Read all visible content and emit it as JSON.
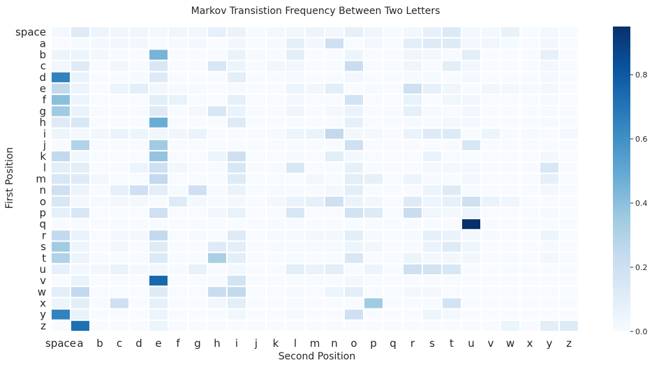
{
  "chart_data": {
    "type": "heatmap",
    "title": "Markov Transistion Frequency Between Two Letters",
    "xlabel": "Second Position",
    "ylabel": "First Position",
    "rows": [
      "space",
      "a",
      "b",
      "c",
      "d",
      "e",
      "f",
      "g",
      "h",
      "i",
      "j",
      "k",
      "l",
      "m",
      "n",
      "o",
      "p",
      "q",
      "r",
      "s",
      "t",
      "u",
      "v",
      "w",
      "x",
      "y",
      "z"
    ],
    "cols": [
      "space",
      "a",
      "b",
      "c",
      "d",
      "e",
      "f",
      "g",
      "h",
      "i",
      "j",
      "k",
      "l",
      "m",
      "n",
      "o",
      "p",
      "q",
      "r",
      "s",
      "t",
      "u",
      "v",
      "w",
      "x",
      "y",
      "z"
    ],
    "colorbar": {
      "min": 0,
      "max": 0.95,
      "ticks": [
        0.0,
        0.2,
        0.4,
        0.6,
        0.8
      ],
      "tick_labels": [
        "0.0",
        "0.2",
        "0.4",
        "0.6",
        "0.8"
      ],
      "colormap": "Blues"
    },
    "values": [
      [
        0.02,
        0.12,
        0.05,
        0.04,
        0.04,
        0.02,
        0.04,
        0.03,
        0.08,
        0.06,
        0.01,
        0.02,
        0.03,
        0.05,
        0.03,
        0.08,
        0.04,
        0.01,
        0.03,
        0.08,
        0.13,
        0.02,
        0.02,
        0.07,
        0.0,
        0.02,
        0.0
      ],
      [
        0.0,
        0.01,
        0.02,
        0.03,
        0.03,
        0.0,
        0.01,
        0.02,
        0.0,
        0.03,
        0.0,
        0.01,
        0.09,
        0.03,
        0.2,
        0.0,
        0.02,
        0.0,
        0.1,
        0.12,
        0.12,
        0.02,
        0.04,
        0.01,
        0.0,
        0.03,
        0.0
      ],
      [
        0.05,
        0.05,
        0.02,
        0.0,
        0.0,
        0.45,
        0.0,
        0.0,
        0.0,
        0.06,
        0.01,
        0.0,
        0.1,
        0.0,
        0.0,
        0.05,
        0.0,
        0.0,
        0.04,
        0.02,
        0.0,
        0.1,
        0.0,
        0.0,
        0.0,
        0.08,
        0.0
      ],
      [
        0.03,
        0.12,
        0.0,
        0.03,
        0.0,
        0.15,
        0.0,
        0.0,
        0.15,
        0.05,
        0.0,
        0.03,
        0.03,
        0.0,
        0.0,
        0.22,
        0.0,
        0.0,
        0.04,
        0.0,
        0.1,
        0.03,
        0.0,
        0.0,
        0.0,
        0.03,
        0.0
      ],
      [
        0.65,
        0.06,
        0.0,
        0.0,
        0.01,
        0.12,
        0.0,
        0.0,
        0.0,
        0.1,
        0.0,
        0.0,
        0.01,
        0.0,
        0.0,
        0.03,
        0.0,
        0.0,
        0.01,
        0.01,
        0.0,
        0.02,
        0.0,
        0.0,
        0.0,
        0.02,
        0.0
      ],
      [
        0.25,
        0.05,
        0.0,
        0.05,
        0.1,
        0.03,
        0.01,
        0.01,
        0.0,
        0.01,
        0.0,
        0.0,
        0.05,
        0.03,
        0.1,
        0.0,
        0.01,
        0.0,
        0.2,
        0.08,
        0.04,
        0.0,
        0.03,
        0.02,
        0.01,
        0.02,
        0.0
      ],
      [
        0.4,
        0.05,
        0.0,
        0.0,
        0.0,
        0.1,
        0.07,
        0.0,
        0.0,
        0.08,
        0.0,
        0.0,
        0.02,
        0.0,
        0.0,
        0.18,
        0.0,
        0.0,
        0.07,
        0.0,
        0.04,
        0.03,
        0.0,
        0.0,
        0.0,
        0.01,
        0.0
      ],
      [
        0.35,
        0.06,
        0.0,
        0.0,
        0.0,
        0.12,
        0.0,
        0.02,
        0.15,
        0.06,
        0.0,
        0.0,
        0.04,
        0.0,
        0.02,
        0.06,
        0.0,
        0.0,
        0.08,
        0.01,
        0.0,
        0.03,
        0.0,
        0.0,
        0.0,
        0.01,
        0.0
      ],
      [
        0.12,
        0.15,
        0.0,
        0.0,
        0.0,
        0.48,
        0.0,
        0.0,
        0.0,
        0.12,
        0.0,
        0.0,
        0.0,
        0.0,
        0.0,
        0.08,
        0.0,
        0.0,
        0.01,
        0.0,
        0.02,
        0.02,
        0.0,
        0.0,
        0.0,
        0.01,
        0.0
      ],
      [
        0.05,
        0.02,
        0.03,
        0.06,
        0.05,
        0.04,
        0.04,
        0.06,
        0.0,
        0.0,
        0.0,
        0.01,
        0.05,
        0.06,
        0.25,
        0.03,
        0.02,
        0.0,
        0.06,
        0.12,
        0.13,
        0.0,
        0.05,
        0.0,
        0.01,
        0.0,
        0.02
      ],
      [
        0.0,
        0.3,
        0.0,
        0.0,
        0.0,
        0.35,
        0.0,
        0.0,
        0.0,
        0.0,
        0.0,
        0.0,
        0.0,
        0.0,
        0.0,
        0.2,
        0.0,
        0.0,
        0.0,
        0.0,
        0.0,
        0.15,
        0.0,
        0.0,
        0.0,
        0.0,
        0.0
      ],
      [
        0.25,
        0.04,
        0.0,
        0.0,
        0.0,
        0.38,
        0.0,
        0.0,
        0.05,
        0.2,
        0.0,
        0.0,
        0.01,
        0.0,
        0.1,
        0.02,
        0.0,
        0.0,
        0.0,
        0.06,
        0.0,
        0.0,
        0.0,
        0.0,
        0.0,
        0.02,
        0.0
      ],
      [
        0.1,
        0.1,
        0.0,
        0.0,
        0.05,
        0.2,
        0.03,
        0.0,
        0.0,
        0.15,
        0.0,
        0.01,
        0.15,
        0.0,
        0.0,
        0.08,
        0.0,
        0.0,
        0.0,
        0.02,
        0.02,
        0.02,
        0.0,
        0.0,
        0.0,
        0.15,
        0.0
      ],
      [
        0.15,
        0.12,
        0.03,
        0.0,
        0.0,
        0.25,
        0.0,
        0.0,
        0.0,
        0.12,
        0.0,
        0.0,
        0.0,
        0.03,
        0.0,
        0.1,
        0.08,
        0.0,
        0.05,
        0.01,
        0.0,
        0.03,
        0.0,
        0.0,
        0.0,
        0.08,
        0.0
      ],
      [
        0.2,
        0.05,
        0.0,
        0.08,
        0.2,
        0.1,
        0.01,
        0.2,
        0.01,
        0.06,
        0.0,
        0.01,
        0.01,
        0.0,
        0.02,
        0.1,
        0.0,
        0.0,
        0.0,
        0.05,
        0.12,
        0.01,
        0.0,
        0.0,
        0.0,
        0.02,
        0.0
      ],
      [
        0.15,
        0.02,
        0.01,
        0.03,
        0.02,
        0.01,
        0.12,
        0.02,
        0.0,
        0.02,
        0.0,
        0.02,
        0.06,
        0.08,
        0.2,
        0.06,
        0.03,
        0.0,
        0.12,
        0.05,
        0.08,
        0.2,
        0.06,
        0.04,
        0.0,
        0.0,
        0.0
      ],
      [
        0.08,
        0.15,
        0.0,
        0.0,
        0.0,
        0.2,
        0.0,
        0.0,
        0.03,
        0.07,
        0.0,
        0.0,
        0.15,
        0.0,
        0.0,
        0.18,
        0.12,
        0.0,
        0.22,
        0.04,
        0.02,
        0.05,
        0.0,
        0.0,
        0.0,
        0.01,
        0.0
      ],
      [
        0.0,
        0.0,
        0.0,
        0.0,
        0.0,
        0.0,
        0.0,
        0.0,
        0.0,
        0.0,
        0.0,
        0.0,
        0.0,
        0.0,
        0.0,
        0.0,
        0.0,
        0.0,
        0.0,
        0.0,
        0.0,
        0.95,
        0.0,
        0.0,
        0.0,
        0.0,
        0.0
      ],
      [
        0.25,
        0.06,
        0.0,
        0.02,
        0.02,
        0.25,
        0.0,
        0.01,
        0.0,
        0.12,
        0.0,
        0.01,
        0.01,
        0.02,
        0.02,
        0.1,
        0.01,
        0.0,
        0.01,
        0.08,
        0.06,
        0.02,
        0.01,
        0.0,
        0.0,
        0.05,
        0.0
      ],
      [
        0.35,
        0.05,
        0.0,
        0.03,
        0.0,
        0.12,
        0.0,
        0.0,
        0.12,
        0.1,
        0.0,
        0.01,
        0.01,
        0.01,
        0.01,
        0.05,
        0.03,
        0.0,
        0.0,
        0.06,
        0.12,
        0.04,
        0.0,
        0.0,
        0.0,
        0.01,
        0.0
      ],
      [
        0.3,
        0.05,
        0.0,
        0.0,
        0.0,
        0.13,
        0.0,
        0.0,
        0.32,
        0.1,
        0.0,
        0.0,
        0.01,
        0.0,
        0.0,
        0.15,
        0.0,
        0.0,
        0.05,
        0.02,
        0.03,
        0.03,
        0.0,
        0.01,
        0.0,
        0.03,
        0.0
      ],
      [
        0.08,
        0.03,
        0.03,
        0.06,
        0.02,
        0.03,
        0.01,
        0.07,
        0.0,
        0.02,
        0.0,
        0.0,
        0.1,
        0.06,
        0.1,
        0.0,
        0.05,
        0.0,
        0.2,
        0.18,
        0.15,
        0.0,
        0.0,
        0.0,
        0.0,
        0.0,
        0.0
      ],
      [
        0.0,
        0.06,
        0.0,
        0.0,
        0.0,
        0.75,
        0.0,
        0.0,
        0.0,
        0.18,
        0.0,
        0.0,
        0.0,
        0.0,
        0.0,
        0.02,
        0.0,
        0.0,
        0.0,
        0.0,
        0.0,
        0.0,
        0.0,
        0.0,
        0.0,
        0.0,
        0.0
      ],
      [
        0.1,
        0.25,
        0.0,
        0.0,
        0.0,
        0.12,
        0.0,
        0.0,
        0.22,
        0.25,
        0.0,
        0.0,
        0.01,
        0.0,
        0.05,
        0.1,
        0.0,
        0.0,
        0.02,
        0.02,
        0.0,
        0.0,
        0.0,
        0.0,
        0.0,
        0.0,
        0.0
      ],
      [
        0.05,
        0.1,
        0.0,
        0.2,
        0.0,
        0.08,
        0.0,
        0.0,
        0.03,
        0.1,
        0.0,
        0.0,
        0.0,
        0.0,
        0.0,
        0.0,
        0.35,
        0.0,
        0.0,
        0.0,
        0.18,
        0.0,
        0.0,
        0.0,
        0.0,
        0.0,
        0.0
      ],
      [
        0.65,
        0.06,
        0.0,
        0.0,
        0.0,
        0.05,
        0.0,
        0.0,
        0.0,
        0.03,
        0.0,
        0.0,
        0.01,
        0.0,
        0.0,
        0.2,
        0.0,
        0.0,
        0.0,
        0.05,
        0.02,
        0.0,
        0.0,
        0.0,
        0.0,
        0.0,
        0.0
      ],
      [
        0.0,
        0.72,
        0.0,
        0.0,
        0.0,
        0.05,
        0.0,
        0.0,
        0.0,
        0.0,
        0.0,
        0.0,
        0.0,
        0.0,
        0.0,
        0.0,
        0.0,
        0.0,
        0.0,
        0.0,
        0.0,
        0.0,
        0.0,
        0.05,
        0.0,
        0.1,
        0.12
      ]
    ]
  }
}
